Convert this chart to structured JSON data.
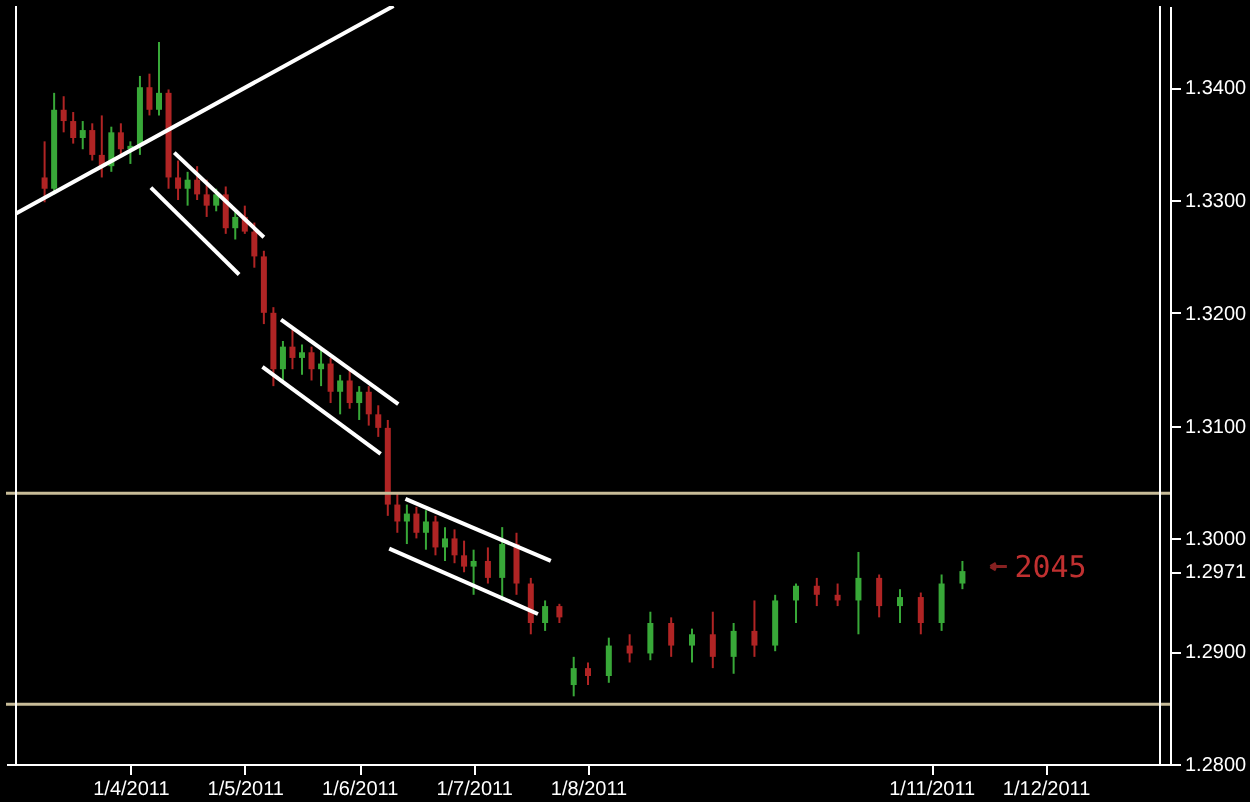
{
  "chart_data": {
    "type": "candlestick",
    "x": [
      "2011-01-03T06:00",
      "2011-01-03T08:00",
      "2011-01-03T10:00",
      "2011-01-03T12:00",
      "2011-01-03T14:00",
      "2011-01-03T16:00",
      "2011-01-03T18:00",
      "2011-01-03T20:00",
      "2011-01-03T22:00",
      "2011-01-04T00:00",
      "2011-01-04T02:00",
      "2011-01-04T04:00",
      "2011-01-04T06:00",
      "2011-01-04T08:00",
      "2011-01-04T10:00",
      "2011-01-04T12:00",
      "2011-01-04T14:00",
      "2011-01-04T16:00",
      "2011-01-04T18:00",
      "2011-01-04T20:00",
      "2011-01-04T22:00",
      "2011-01-05T00:00",
      "2011-01-05T02:00",
      "2011-01-05T04:00",
      "2011-01-05T06:00",
      "2011-01-05T08:00",
      "2011-01-05T10:00",
      "2011-01-05T12:00",
      "2011-01-05T14:00",
      "2011-01-05T16:00",
      "2011-01-05T18:00",
      "2011-01-05T20:00",
      "2011-01-05T22:00",
      "2011-01-06T00:00",
      "2011-01-06T02:00",
      "2011-01-06T04:00",
      "2011-01-06T06:00",
      "2011-01-06T08:00",
      "2011-01-06T10:00",
      "2011-01-06T12:00",
      "2011-01-06T14:00",
      "2011-01-06T16:00",
      "2011-01-06T18:00",
      "2011-01-06T20:00",
      "2011-01-06T22:00",
      "2011-01-07T00:00",
      "2011-01-07T03:00",
      "2011-01-07T06:00",
      "2011-01-07T09:00",
      "2011-01-07T12:00",
      "2011-01-07T15:00",
      "2011-01-07T18:00",
      "2011-01-07T21:00",
      "2011-01-08T00:00",
      "2011-01-08T04:22",
      "2011-01-08T08:44",
      "2011-01-08T13:05",
      "2011-01-08T17:27",
      "2011-01-08T21:49",
      "2011-01-09T02:11",
      "2011-01-09T06:33",
      "2011-01-09T10:55",
      "2011-01-09T15:16",
      "2011-01-09T19:38",
      "2011-01-10T00:00",
      "2011-01-10T04:22",
      "2011-01-10T08:44",
      "2011-01-10T13:05",
      "2011-01-10T17:27",
      "2011-01-10T21:49",
      "2011-01-11T02:11",
      "2011-01-11T06:33"
    ],
    "ohlc": [
      [
        1.332,
        1.3352,
        1.3298,
        1.331
      ],
      [
        1.331,
        1.3395,
        1.3305,
        1.338
      ],
      [
        1.338,
        1.3392,
        1.336,
        1.337
      ],
      [
        1.337,
        1.3378,
        1.335,
        1.3355
      ],
      [
        1.3355,
        1.337,
        1.3345,
        1.3362
      ],
      [
        1.3362,
        1.3368,
        1.3335,
        1.334
      ],
      [
        1.334,
        1.3375,
        1.332,
        1.333
      ],
      [
        1.333,
        1.3365,
        1.3325,
        1.336
      ],
      [
        1.336,
        1.3368,
        1.334,
        1.3345
      ],
      [
        1.3345,
        1.3352,
        1.3332,
        1.3348
      ],
      [
        1.3348,
        1.341,
        1.334,
        1.34
      ],
      [
        1.34,
        1.3412,
        1.3375,
        1.338
      ],
      [
        1.338,
        1.344,
        1.3375,
        1.3395
      ],
      [
        1.3395,
        1.3398,
        1.331,
        1.332
      ],
      [
        1.332,
        1.3335,
        1.33,
        1.331
      ],
      [
        1.331,
        1.3325,
        1.3295,
        1.3318
      ],
      [
        1.3318,
        1.333,
        1.33,
        1.3305
      ],
      [
        1.3305,
        1.3318,
        1.3285,
        1.3295
      ],
      [
        1.3295,
        1.331,
        1.329,
        1.3305
      ],
      [
        1.3305,
        1.3312,
        1.327,
        1.3275
      ],
      [
        1.3275,
        1.329,
        1.3265,
        1.3285
      ],
      [
        1.3285,
        1.3295,
        1.327,
        1.3272
      ],
      [
        1.3272,
        1.328,
        1.324,
        1.325
      ],
      [
        1.325,
        1.3255,
        1.319,
        1.32
      ],
      [
        1.32,
        1.3205,
        1.3135,
        1.315
      ],
      [
        1.315,
        1.3175,
        1.314,
        1.317
      ],
      [
        1.317,
        1.3185,
        1.315,
        1.316
      ],
      [
        1.316,
        1.3172,
        1.3145,
        1.3165
      ],
      [
        1.3165,
        1.317,
        1.314,
        1.315
      ],
      [
        1.315,
        1.3168,
        1.3135,
        1.3155
      ],
      [
        1.3155,
        1.316,
        1.312,
        1.313
      ],
      [
        1.313,
        1.3145,
        1.311,
        1.314
      ],
      [
        1.314,
        1.315,
        1.3115,
        1.312
      ],
      [
        1.312,
        1.3135,
        1.3105,
        1.313
      ],
      [
        1.313,
        1.3135,
        1.31,
        1.311
      ],
      [
        1.311,
        1.3118,
        1.309,
        1.3098
      ],
      [
        1.3098,
        1.3105,
        1.302,
        1.303
      ],
      [
        1.303,
        1.304,
        1.3005,
        1.3015
      ],
      [
        1.3015,
        1.303,
        1.2995,
        1.3022
      ],
      [
        1.3022,
        1.3028,
        1.3,
        1.3005
      ],
      [
        1.3005,
        1.3025,
        1.299,
        1.3015
      ],
      [
        1.3015,
        1.302,
        1.2985,
        1.2992
      ],
      [
        1.2992,
        1.301,
        1.298,
        1.3
      ],
      [
        1.3,
        1.3008,
        1.2978,
        1.2985
      ],
      [
        1.2985,
        1.2998,
        1.297,
        1.2975
      ],
      [
        1.2975,
        1.299,
        1.295,
        1.298
      ],
      [
        1.298,
        1.2992,
        1.296,
        1.2965
      ],
      [
        1.2965,
        1.301,
        1.2945,
        1.2995
      ],
      [
        1.2995,
        1.3005,
        1.295,
        1.296
      ],
      [
        1.296,
        1.2965,
        1.2915,
        1.2925
      ],
      [
        1.2925,
        1.2945,
        1.2918,
        1.294
      ],
      [
        1.294,
        1.2942,
        1.2925,
        1.293
      ],
      [
        1.287,
        1.2895,
        1.286,
        1.2885
      ],
      [
        1.2885,
        1.289,
        1.287,
        1.2878
      ],
      [
        1.2878,
        1.2912,
        1.2872,
        1.2905
      ],
      [
        1.2905,
        1.2915,
        1.289,
        1.2898
      ],
      [
        1.2898,
        1.2935,
        1.2892,
        1.2925
      ],
      [
        1.2925,
        1.293,
        1.2895,
        1.2905
      ],
      [
        1.2905,
        1.292,
        1.289,
        1.2915
      ],
      [
        1.2915,
        1.2935,
        1.2885,
        1.2895
      ],
      [
        1.2895,
        1.2925,
        1.288,
        1.2918
      ],
      [
        1.2918,
        1.2945,
        1.2895,
        1.2905
      ],
      [
        1.2905,
        1.295,
        1.29,
        1.2945
      ],
      [
        1.2945,
        1.296,
        1.2925,
        1.2958
      ],
      [
        1.2958,
        1.2965,
        1.294,
        1.295
      ],
      [
        1.295,
        1.296,
        1.294,
        1.2945
      ],
      [
        1.2945,
        1.2988,
        1.2915,
        1.2965
      ],
      [
        1.2965,
        1.2968,
        1.293,
        1.294
      ],
      [
        1.294,
        1.2955,
        1.2925,
        1.2948
      ],
      [
        1.2948,
        1.2952,
        1.2915,
        1.2925
      ],
      [
        1.2925,
        1.2968,
        1.2918,
        1.296
      ],
      [
        1.296,
        1.298,
        1.2955,
        1.2971
      ]
    ],
    "colors": [
      "#b02424",
      "#38a838",
      "#b02424",
      "#b02424",
      "#38a838",
      "#b02424",
      "#b02424",
      "#38a838",
      "#b02424",
      "#38a838",
      "#38a838",
      "#b02424",
      "#38a838",
      "#b02424",
      "#b02424",
      "#38a838",
      "#b02424",
      "#b02424",
      "#38a838",
      "#b02424",
      "#38a838",
      "#b02424",
      "#b02424",
      "#b02424",
      "#b02424",
      "#38a838",
      "#b02424",
      "#38a838",
      "#b02424",
      "#38a838",
      "#b02424",
      "#38a838",
      "#b02424",
      "#38a838",
      "#b02424",
      "#b02424",
      "#b02424",
      "#b02424",
      "#38a838",
      "#b02424",
      "#38a838",
      "#b02424",
      "#38a838",
      "#b02424",
      "#b02424",
      "#38a838",
      "#b02424",
      "#38a838",
      "#b02424",
      "#b02424",
      "#38a838",
      "#b02424",
      "#38a838",
      "#b02424",
      "#38a838",
      "#b02424",
      "#38a838",
      "#b02424",
      "#38a838",
      "#b02424",
      "#38a838",
      "#b02424",
      "#38a838",
      "#38a838",
      "#b02424",
      "#b02424",
      "#38a838",
      "#b02424",
      "#38a838",
      "#b02424",
      "#38a838",
      "#38a838"
    ],
    "series": [
      {
        "type": "line",
        "color": "#ffffff",
        "x": [
          "2011-01-03T00:00",
          "2011-01-06T07:12"
        ],
        "values": [
          1.3288,
          1.3472
        ]
      },
      {
        "type": "line",
        "color": "#ffffff",
        "x": [
          "2011-01-04T09:12",
          "2011-01-05T04:00"
        ],
        "values": [
          1.3342,
          1.3267
        ]
      },
      {
        "type": "line",
        "color": "#ffffff",
        "x": [
          "2011-01-04T04:18",
          "2011-01-04T22:48"
        ],
        "values": [
          1.3311,
          1.3234
        ]
      },
      {
        "type": "line",
        "color": "#ffffff",
        "x": [
          "2011-01-05T07:36",
          "2011-01-06T08:12"
        ],
        "values": [
          1.3194,
          1.3119
        ]
      },
      {
        "type": "line",
        "color": "#ffffff",
        "x": [
          "2011-01-05T03:42",
          "2011-01-06T04:30"
        ],
        "values": [
          1.3152,
          1.3075
        ]
      },
      {
        "type": "line",
        "color": "#ffffff",
        "x": [
          "2011-01-06T09:42",
          "2011-01-07T16:12"
        ],
        "values": [
          1.3035,
          1.298
        ]
      },
      {
        "type": "line",
        "color": "#ffffff",
        "x": [
          "2011-01-06T06:18",
          "2011-01-07T13:30"
        ],
        "values": [
          1.2991,
          1.2933
        ]
      }
    ],
    "ref_lines": [
      {
        "axis": "y",
        "value": 1.304,
        "color": "#c8bc98"
      },
      {
        "axis": "y",
        "value": 1.2853,
        "color": "#c8bc98"
      }
    ],
    "annotations": [
      {
        "text": "2045",
        "x": "2011-01-11T06:33",
        "y": 1.2975
      }
    ],
    "xlim": [
      "2011-01-03",
      "2011-01-13"
    ],
    "xticks": [
      {
        "value": "2011-01-04",
        "label": "1/4/2011"
      },
      {
        "value": "2011-01-05",
        "label": "1/5/2011"
      },
      {
        "value": "2011-01-06",
        "label": "1/6/2011"
      },
      {
        "value": "2011-01-07",
        "label": "1/7/2011"
      },
      {
        "value": "2011-01-08",
        "label": "1/8/2011"
      },
      {
        "value": "2011-01-11",
        "label": "1/11/2011"
      },
      {
        "value": "2011-01-12",
        "label": "1/12/2011"
      }
    ],
    "ylim": [
      1.28,
      1.3472
    ],
    "yticks": [
      {
        "value": 1.28,
        "label": "1.2800"
      },
      {
        "value": 1.29,
        "label": "1.2900"
      },
      {
        "value": 1.2971,
        "label": "1.2971"
      },
      {
        "value": 1.3,
        "label": "1.3000"
      },
      {
        "value": 1.31,
        "label": "1.3100"
      },
      {
        "value": 1.32,
        "label": "1.3200"
      },
      {
        "value": 1.33,
        "label": "1.3300"
      },
      {
        "value": 1.34,
        "label": "1.3400"
      }
    ],
    "grid": false
  }
}
